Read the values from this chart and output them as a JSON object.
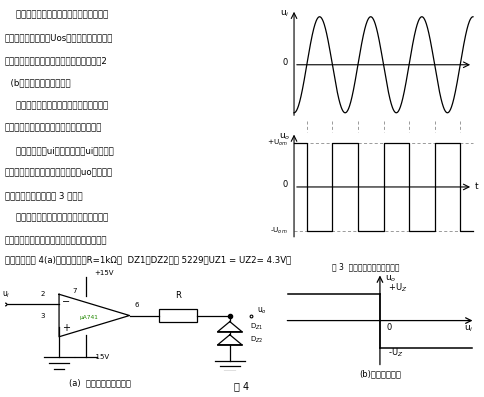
{
  "lines": [
    "    對于實際運算放大器，由于其增益不是無",
    "限大，輸入失調電壓Uos不等于零，因此，輸",
    "出狀態的轉換不是突然的，其傳輸特性如圖2",
    "  (b）所示，存在線性區。",
    "    由以上工作原理可知，比較器中運放的反",
    "向輸入端和同相輸入端的電壓不一定相等。",
    "    假設輸入信號ui為正弦波，在ui過零時，",
    "比較器的輸出就跳變一次，因此，uo為正、負",
    "相間的方波電壓，如圖 3 所示。",
    "    為了使輸出電壓有確定的數值并改善大信",
    "號時的傳輸特性，經常在比較器的輸出端接上"
  ],
  "caption": "限幅器。如圖 4(a)所示。圖中：R=1kΩ，  DZ1、DZ2采用 5229，UZ1 = UZ2= 4.3V。",
  "fig3_cap": "圖 3  比較器的輸入與輸出波形",
  "fig4_cap": "圖 4",
  "sub_a_cap": "(a)  接上限幅器的比較器",
  "sub_b_cap": "(b)電壓傳輸特性",
  "bg": "#ffffff",
  "fg": "#000000"
}
